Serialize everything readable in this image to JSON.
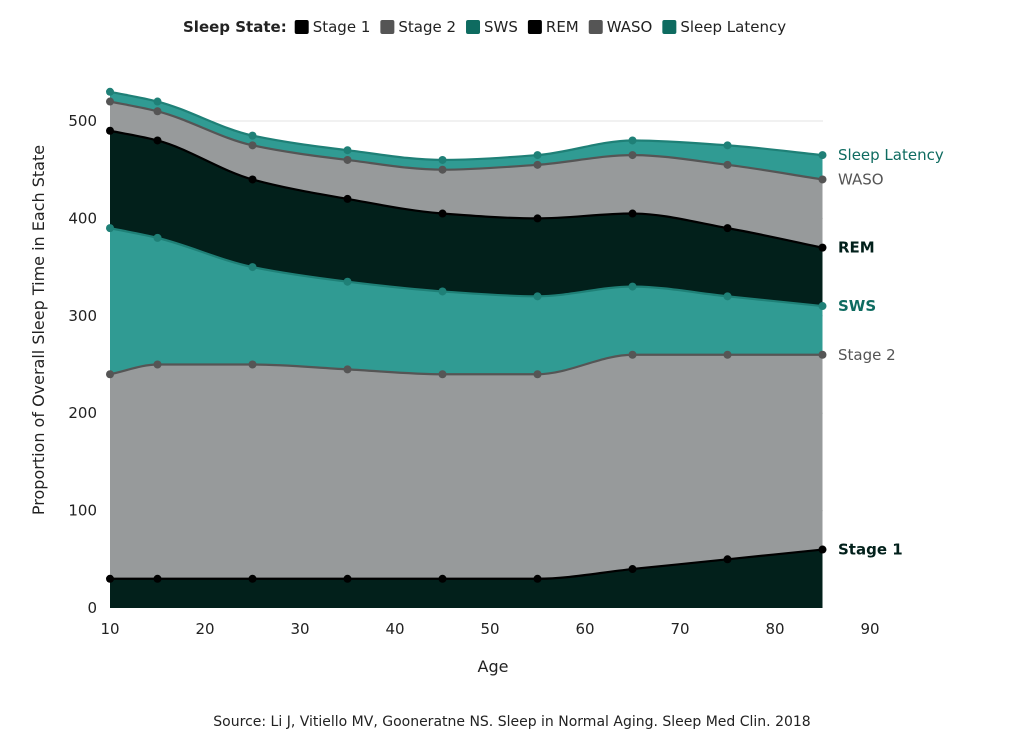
{
  "chart_data": {
    "type": "area",
    "stacked": true,
    "legend_title": "Sleep State:",
    "legend_position": "top",
    "xlabel": "Age",
    "ylabel": "Proportion of Overall Sleep Time in Each State",
    "source": "Source: Li J, Vitiello MV, Gooneratne NS. Sleep in Normal Aging. Sleep Med Clin. 2018",
    "xlim": [
      10,
      90
    ],
    "ylim": [
      0,
      550
    ],
    "x_ticks": [
      10,
      20,
      30,
      40,
      50,
      60,
      70,
      80,
      90
    ],
    "y_ticks": [
      0,
      100,
      200,
      300,
      400,
      500
    ],
    "grid": "horizontal",
    "x": [
      10,
      15,
      25,
      35,
      45,
      55,
      65,
      75,
      85
    ],
    "series": [
      {
        "name": "Stage 1",
        "color": "#02201b",
        "line_color": "#000000",
        "label_color": "#02201b",
        "label_weight": "bold",
        "values": [
          30,
          30,
          30,
          30,
          30,
          30,
          40,
          50,
          60
        ]
      },
      {
        "name": "Stage 2",
        "color": "#979a9b",
        "line_color": "#555555",
        "label_color": "#555555",
        "label_weight": "normal",
        "values": [
          240,
          250,
          250,
          245,
          240,
          240,
          260,
          260,
          260
        ]
      },
      {
        "name": "SWS",
        "color": "#309b93",
        "line_color": "#1f8077",
        "label_color": "#0e6b60",
        "label_weight": "bold",
        "values": [
          390,
          380,
          350,
          335,
          325,
          320,
          330,
          320,
          310
        ]
      },
      {
        "name": "REM",
        "color": "#02201b",
        "line_color": "#000000",
        "label_color": "#02201b",
        "label_weight": "bold",
        "values": [
          490,
          480,
          440,
          420,
          405,
          400,
          405,
          390,
          370
        ]
      },
      {
        "name": "WASO",
        "color": "#979a9b",
        "line_color": "#555555",
        "label_color": "#555555",
        "label_weight": "normal",
        "values": [
          520,
          510,
          475,
          460,
          450,
          455,
          465,
          455,
          440
        ]
      },
      {
        "name": "Sleep Latency",
        "color": "#309b93",
        "line_color": "#1f8077",
        "label_color": "#0e6b60",
        "label_weight": "normal",
        "values": [
          530,
          520,
          485,
          470,
          460,
          465,
          480,
          475,
          465
        ]
      }
    ],
    "legend_swatch_colors": [
      "#000000",
      "#555555",
      "#0e6b60",
      "#000000",
      "#555555",
      "#0e6b60"
    ]
  }
}
